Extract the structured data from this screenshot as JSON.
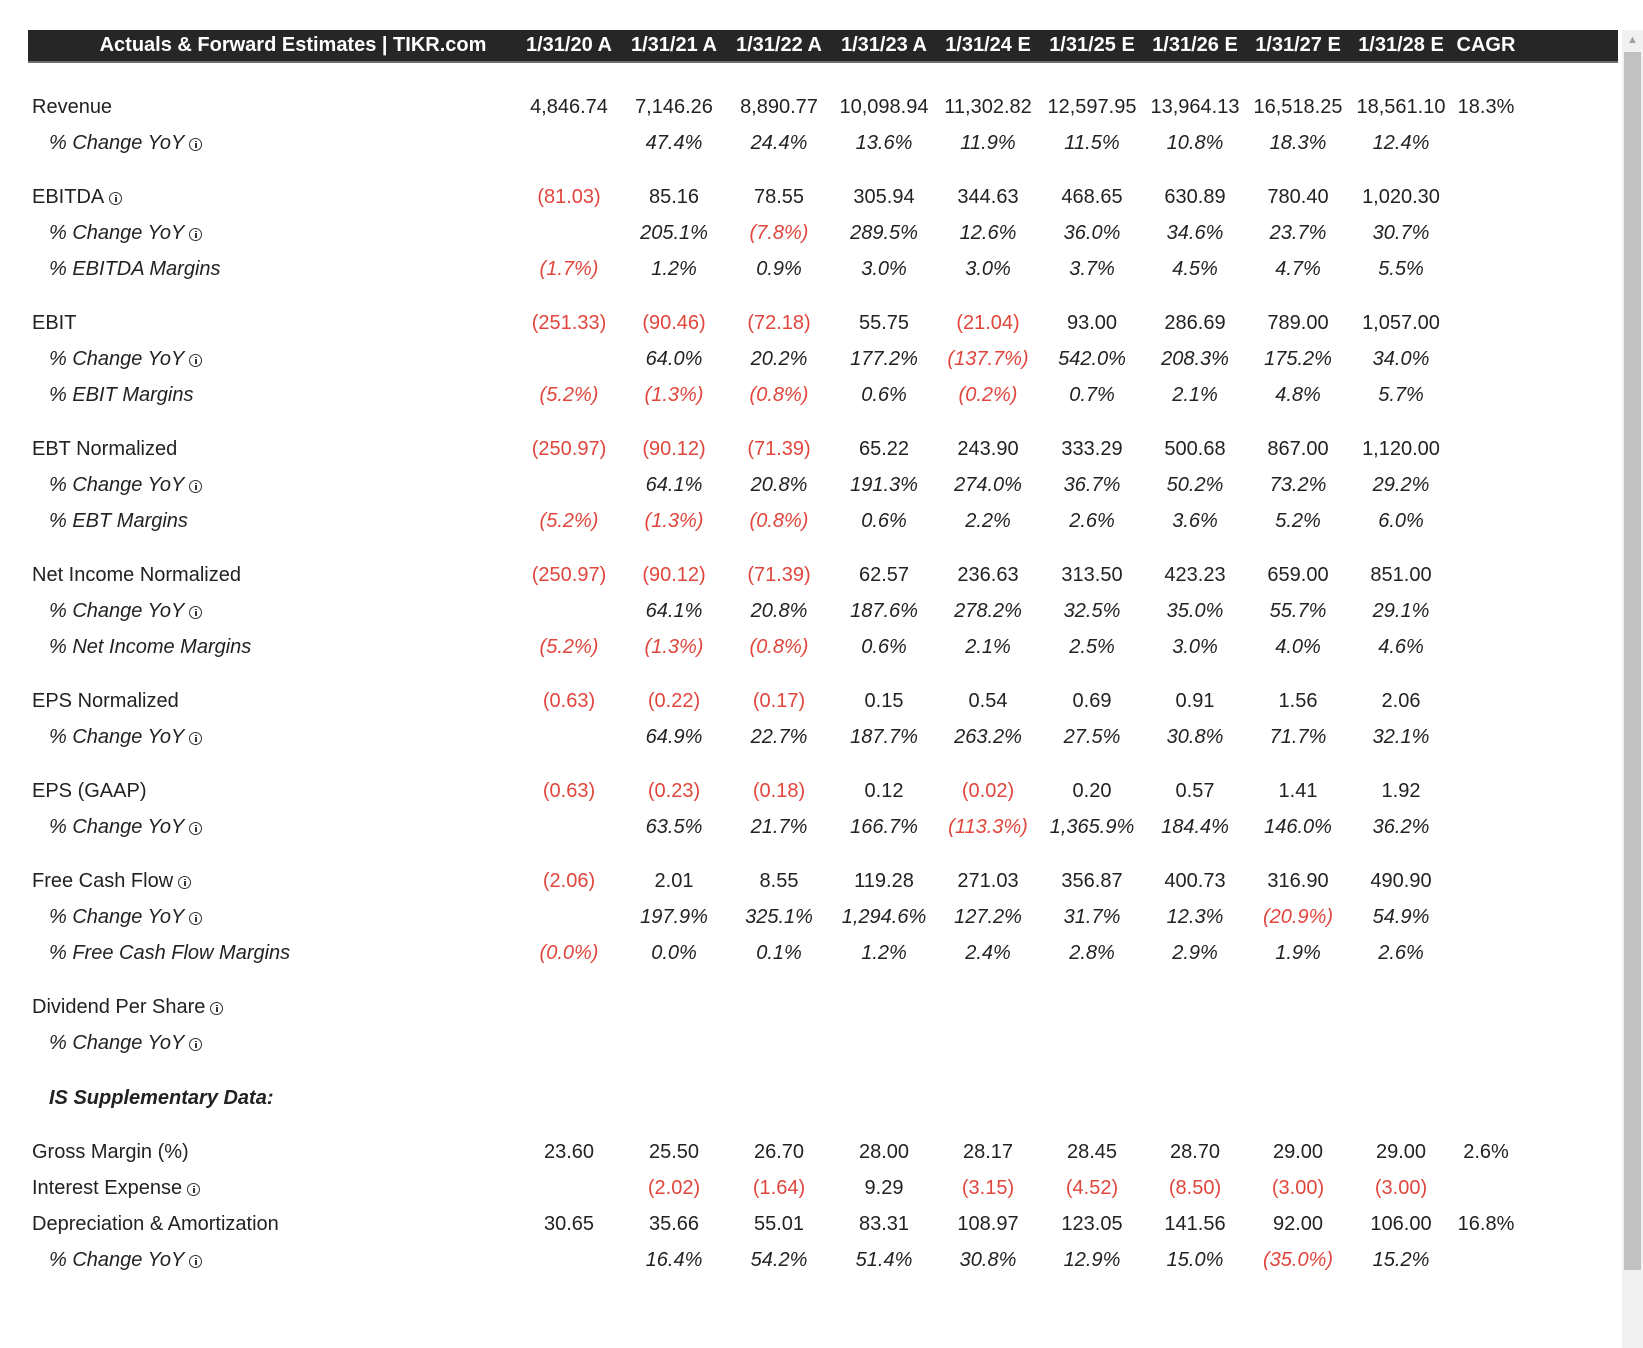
{
  "header": {
    "title": "Actuals & Forward Estimates | TIKR.com",
    "columns": [
      "1/31/20 A",
      "1/31/21 A",
      "1/31/22 A",
      "1/31/23 A",
      "1/31/24 E",
      "1/31/25 E",
      "1/31/26 E",
      "1/31/27 E",
      "1/31/28 E",
      "CAGR"
    ]
  },
  "colors": {
    "negative": "#e0463c",
    "header_bg": "#262626",
    "text": "#222222"
  },
  "rows": [
    {
      "label": "Revenue",
      "kind": "main",
      "info": false,
      "values": [
        "4,846.74",
        "7,146.26",
        "8,890.77",
        "10,098.94",
        "11,302.82",
        "12,597.95",
        "13,964.13",
        "16,518.25",
        "18,561.10",
        "18.3%"
      ]
    },
    {
      "label": "% Change YoY",
      "kind": "sub",
      "info": true,
      "values": [
        "",
        "47.4%",
        "24.4%",
        "13.6%",
        "11.9%",
        "11.5%",
        "10.8%",
        "18.3%",
        "12.4%",
        ""
      ]
    },
    {
      "label": "EBITDA",
      "kind": "main",
      "info": true,
      "values": [
        "(81.03)",
        "85.16",
        "78.55",
        "305.94",
        "344.63",
        "468.65",
        "630.89",
        "780.40",
        "1,020.30",
        ""
      ]
    },
    {
      "label": "% Change YoY",
      "kind": "sub",
      "info": true,
      "values": [
        "",
        "205.1%",
        "(7.8%)",
        "289.5%",
        "12.6%",
        "36.0%",
        "34.6%",
        "23.7%",
        "30.7%",
        ""
      ]
    },
    {
      "label": "% EBITDA Margins",
      "kind": "sub",
      "info": false,
      "values": [
        "(1.7%)",
        "1.2%",
        "0.9%",
        "3.0%",
        "3.0%",
        "3.7%",
        "4.5%",
        "4.7%",
        "5.5%",
        ""
      ]
    },
    {
      "label": "EBIT",
      "kind": "main",
      "info": false,
      "values": [
        "(251.33)",
        "(90.46)",
        "(72.18)",
        "55.75",
        "(21.04)",
        "93.00",
        "286.69",
        "789.00",
        "1,057.00",
        ""
      ]
    },
    {
      "label": "% Change YoY",
      "kind": "sub",
      "info": true,
      "values": [
        "",
        "64.0%",
        "20.2%",
        "177.2%",
        "(137.7%)",
        "542.0%",
        "208.3%",
        "175.2%",
        "34.0%",
        ""
      ]
    },
    {
      "label": "% EBIT Margins",
      "kind": "sub",
      "info": false,
      "values": [
        "(5.2%)",
        "(1.3%)",
        "(0.8%)",
        "0.6%",
        "(0.2%)",
        "0.7%",
        "2.1%",
        "4.8%",
        "5.7%",
        ""
      ]
    },
    {
      "label": "EBT Normalized",
      "kind": "main",
      "info": false,
      "values": [
        "(250.97)",
        "(90.12)",
        "(71.39)",
        "65.22",
        "243.90",
        "333.29",
        "500.68",
        "867.00",
        "1,120.00",
        ""
      ]
    },
    {
      "label": "% Change YoY",
      "kind": "sub",
      "info": true,
      "values": [
        "",
        "64.1%",
        "20.8%",
        "191.3%",
        "274.0%",
        "36.7%",
        "50.2%",
        "73.2%",
        "29.2%",
        ""
      ]
    },
    {
      "label": "% EBT Margins",
      "kind": "sub",
      "info": false,
      "values": [
        "(5.2%)",
        "(1.3%)",
        "(0.8%)",
        "0.6%",
        "2.2%",
        "2.6%",
        "3.6%",
        "5.2%",
        "6.0%",
        ""
      ]
    },
    {
      "label": "Net Income Normalized",
      "kind": "main",
      "info": false,
      "values": [
        "(250.97)",
        "(90.12)",
        "(71.39)",
        "62.57",
        "236.63",
        "313.50",
        "423.23",
        "659.00",
        "851.00",
        ""
      ]
    },
    {
      "label": "% Change YoY",
      "kind": "sub",
      "info": true,
      "values": [
        "",
        "64.1%",
        "20.8%",
        "187.6%",
        "278.2%",
        "32.5%",
        "35.0%",
        "55.7%",
        "29.1%",
        ""
      ]
    },
    {
      "label": "% Net Income Margins",
      "kind": "sub",
      "info": false,
      "values": [
        "(5.2%)",
        "(1.3%)",
        "(0.8%)",
        "0.6%",
        "2.1%",
        "2.5%",
        "3.0%",
        "4.0%",
        "4.6%",
        ""
      ]
    },
    {
      "label": "EPS Normalized",
      "kind": "main",
      "info": false,
      "values": [
        "(0.63)",
        "(0.22)",
        "(0.17)",
        "0.15",
        "0.54",
        "0.69",
        "0.91",
        "1.56",
        "2.06",
        ""
      ]
    },
    {
      "label": "% Change YoY",
      "kind": "sub",
      "info": true,
      "values": [
        "",
        "64.9%",
        "22.7%",
        "187.7%",
        "263.2%",
        "27.5%",
        "30.8%",
        "71.7%",
        "32.1%",
        ""
      ]
    },
    {
      "label": "EPS (GAAP)",
      "kind": "main",
      "info": false,
      "values": [
        "(0.63)",
        "(0.23)",
        "(0.18)",
        "0.12",
        "(0.02)",
        "0.20",
        "0.57",
        "1.41",
        "1.92",
        ""
      ]
    },
    {
      "label": "% Change YoY",
      "kind": "sub",
      "info": true,
      "values": [
        "",
        "63.5%",
        "21.7%",
        "166.7%",
        "(113.3%)",
        "1,365.9%",
        "184.4%",
        "146.0%",
        "36.2%",
        ""
      ]
    },
    {
      "label": "Free Cash Flow",
      "kind": "main",
      "info": true,
      "values": [
        "(2.06)",
        "2.01",
        "8.55",
        "119.28",
        "271.03",
        "356.87",
        "400.73",
        "316.90",
        "490.90",
        ""
      ]
    },
    {
      "label": "% Change YoY",
      "kind": "sub",
      "info": true,
      "values": [
        "",
        "197.9%",
        "325.1%",
        "1,294.6%",
        "127.2%",
        "31.7%",
        "12.3%",
        "(20.9%)",
        "54.9%",
        ""
      ]
    },
    {
      "label": "% Free Cash Flow Margins",
      "kind": "sub",
      "info": false,
      "values": [
        "(0.0%)",
        "0.0%",
        "0.1%",
        "1.2%",
        "2.4%",
        "2.8%",
        "2.9%",
        "1.9%",
        "2.6%",
        ""
      ]
    },
    {
      "label": "Dividend Per Share",
      "kind": "main",
      "info": true,
      "values": [
        "",
        "",
        "",
        "",
        "",
        "",
        "",
        "",
        "",
        ""
      ]
    },
    {
      "label": "% Change YoY",
      "kind": "sub",
      "info": true,
      "values": [
        "",
        "",
        "",
        "",
        "",
        "",
        "",
        "",
        "",
        ""
      ]
    },
    {
      "label": "IS Supplementary Data:",
      "kind": "section",
      "info": false,
      "values": []
    },
    {
      "label": "Gross Margin (%)",
      "kind": "main",
      "info": false,
      "values": [
        "23.60",
        "25.50",
        "26.70",
        "28.00",
        "28.17",
        "28.45",
        "28.70",
        "29.00",
        "29.00",
        "2.6%"
      ]
    },
    {
      "label": "Interest Expense",
      "kind": "main",
      "info": true,
      "values": [
        "",
        "(2.02)",
        "(1.64)",
        "9.29",
        "(3.15)",
        "(4.52)",
        "(8.50)",
        "(3.00)",
        "(3.00)",
        ""
      ]
    },
    {
      "label": "Depreciation & Amortization",
      "kind": "main",
      "info": false,
      "values": [
        "30.65",
        "35.66",
        "55.01",
        "83.31",
        "108.97",
        "123.05",
        "141.56",
        "92.00",
        "106.00",
        "16.8%"
      ]
    },
    {
      "label": "% Change YoY",
      "kind": "sub",
      "info": true,
      "values": [
        "",
        "16.4%",
        "54.2%",
        "51.4%",
        "30.8%",
        "12.9%",
        "15.0%",
        "(35.0%)",
        "15.2%",
        ""
      ]
    }
  ]
}
